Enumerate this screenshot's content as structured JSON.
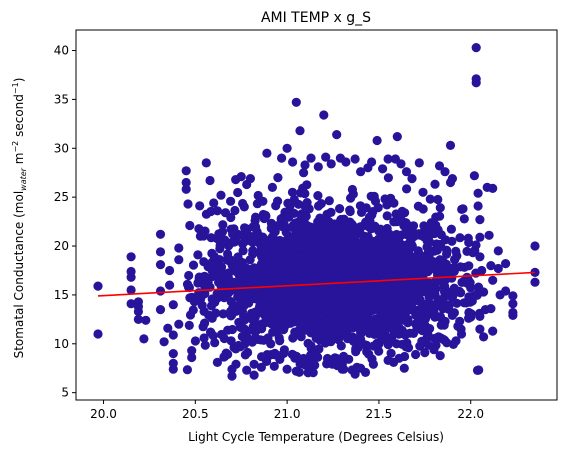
{
  "chart_data": {
    "type": "scatter",
    "title": "AMI TEMP x g_S",
    "xlabel": "Light Cycle Temperature (Degrees Celsius)",
    "ylabel": {
      "main": "Stomatal Conductance (mol",
      "sub": "water",
      "mid": " m",
      "sup1": "−2",
      "tail": " second",
      "sup2": "−1",
      "end": ")"
    },
    "xlim": [
      19.85,
      22.47
    ],
    "ylim": [
      4.25,
      42.1
    ],
    "xticks": [
      "20.0",
      "20.5",
      "21.0",
      "21.5",
      "22.0"
    ],
    "xtick_values": [
      20.0,
      20.5,
      21.0,
      21.5,
      22.0
    ],
    "yticks": [
      "5",
      "10",
      "15",
      "20",
      "25",
      "30",
      "35",
      "40"
    ],
    "ytick_values": [
      5,
      10,
      15,
      20,
      25,
      30,
      35,
      40
    ],
    "grid": false,
    "legend": "none",
    "point_color": "#27149a",
    "line_color": "#ff0000",
    "cloud": {
      "description_values": "dense cluster",
      "x_center": 21.25,
      "x_sd": 0.35,
      "y_center": 16.5,
      "y_sd": 3.6,
      "x_range": [
        20.45,
        22.05
      ],
      "y_range": [
        6.8,
        28.5
      ]
    },
    "points": [
      [
        19.97,
        15.9
      ],
      [
        19.97,
        11.0
      ],
      [
        20.15,
        18.9
      ],
      [
        20.15,
        17.4
      ],
      [
        20.15,
        15.5
      ],
      [
        20.15,
        14.1
      ],
      [
        20.15,
        16.8
      ],
      [
        20.19,
        14.3
      ],
      [
        20.19,
        13.3
      ],
      [
        20.19,
        12.5
      ],
      [
        20.19,
        13.8
      ],
      [
        20.22,
        10.5
      ],
      [
        20.23,
        12.4
      ],
      [
        20.31,
        21.2
      ],
      [
        20.31,
        19.4
      ],
      [
        20.31,
        18.1
      ],
      [
        20.31,
        15.4
      ],
      [
        20.31,
        13.5
      ],
      [
        20.33,
        10.2
      ],
      [
        20.35,
        11.6
      ],
      [
        20.36,
        16.0
      ],
      [
        20.36,
        17.5
      ],
      [
        20.38,
        7.4
      ],
      [
        20.38,
        8.0
      ],
      [
        20.38,
        9.0
      ],
      [
        20.38,
        10.9
      ],
      [
        20.38,
        14.0
      ],
      [
        20.41,
        19.8
      ],
      [
        20.41,
        18.6
      ],
      [
        20.41,
        12.0
      ],
      [
        20.45,
        25.8
      ],
      [
        20.45,
        26.5
      ],
      [
        20.45,
        27.7
      ],
      [
        20.46,
        24.3
      ],
      [
        20.47,
        22.1
      ],
      [
        20.48,
        9.3
      ],
      [
        20.48,
        8.6
      ],
      [
        20.56,
        28.5
      ],
      [
        20.58,
        26.7
      ],
      [
        20.6,
        24.4
      ],
      [
        20.62,
        23.6
      ],
      [
        20.64,
        25.2
      ],
      [
        20.62,
        8.1
      ],
      [
        20.66,
        8.7
      ],
      [
        20.7,
        6.7
      ],
      [
        20.7,
        7.4
      ],
      [
        20.72,
        26.8
      ],
      [
        20.75,
        27.1
      ],
      [
        20.78,
        26.3
      ],
      [
        20.8,
        26.9
      ],
      [
        20.78,
        7.3
      ],
      [
        20.82,
        7.9
      ],
      [
        20.82,
        6.8
      ],
      [
        20.86,
        7.6
      ],
      [
        20.89,
        29.5
      ],
      [
        20.92,
        26.0
      ],
      [
        20.95,
        27.0
      ],
      [
        20.97,
        29.0
      ],
      [
        20.93,
        7.7
      ],
      [
        20.96,
        8.4
      ],
      [
        21.0,
        7.4
      ],
      [
        21.0,
        30.0
      ],
      [
        21.03,
        28.6
      ],
      [
        21.05,
        34.7
      ],
      [
        21.07,
        31.8
      ],
      [
        21.09,
        27.5
      ],
      [
        21.05,
        7.2
      ],
      [
        21.1,
        7.8
      ],
      [
        21.13,
        29.0
      ],
      [
        21.17,
        28.1
      ],
      [
        21.2,
        33.4
      ],
      [
        21.21,
        29.1
      ],
      [
        21.24,
        28.4
      ],
      [
        21.15,
        7.8
      ],
      [
        21.22,
        8.5
      ],
      [
        21.27,
        31.4
      ],
      [
        21.29,
        29.0
      ],
      [
        21.32,
        28.6
      ],
      [
        21.37,
        28.9
      ],
      [
        21.4,
        27.6
      ],
      [
        21.3,
        7.4
      ],
      [
        21.37,
        6.9
      ],
      [
        21.4,
        7.5
      ],
      [
        21.44,
        28.0
      ],
      [
        21.46,
        28.6
      ],
      [
        21.49,
        30.8
      ],
      [
        21.52,
        27.9
      ],
      [
        21.55,
        28.9
      ],
      [
        21.47,
        7.9
      ],
      [
        21.55,
        8.3
      ],
      [
        21.59,
        28.9
      ],
      [
        21.6,
        31.2
      ],
      [
        21.62,
        28.4
      ],
      [
        21.65,
        27.6
      ],
      [
        21.68,
        26.9
      ],
      [
        21.58,
        8.1
      ],
      [
        21.64,
        8.7
      ],
      [
        21.7,
        8.9
      ],
      [
        21.72,
        28.5
      ],
      [
        21.74,
        25.5
      ],
      [
        21.78,
        24.8
      ],
      [
        21.83,
        28.2
      ],
      [
        21.86,
        27.6
      ],
      [
        21.75,
        9.1
      ],
      [
        21.8,
        9.4
      ],
      [
        21.87,
        10.1
      ],
      [
        21.89,
        30.3
      ],
      [
        21.89,
        26.5
      ],
      [
        21.9,
        26.9
      ],
      [
        21.9,
        12.9
      ],
      [
        21.92,
        10.3
      ],
      [
        21.93,
        11.8
      ],
      [
        21.94,
        12.3
      ],
      [
        21.95,
        11.0
      ],
      [
        21.98,
        16.8
      ],
      [
        21.99,
        14.8
      ],
      [
        21.99,
        13.2
      ],
      [
        22.03,
        40.3
      ],
      [
        22.03,
        37.1
      ],
      [
        22.03,
        36.7
      ],
      [
        22.02,
        27.2
      ],
      [
        22.04,
        25.4
      ],
      [
        22.04,
        24.1
      ],
      [
        22.05,
        22.7
      ],
      [
        22.05,
        20.9
      ],
      [
        22.05,
        18.9
      ],
      [
        22.06,
        17.5
      ],
      [
        22.05,
        11.5
      ],
      [
        22.05,
        12.8
      ],
      [
        22.07,
        10.7
      ],
      [
        22.07,
        15.3
      ],
      [
        22.08,
        13.5
      ],
      [
        22.09,
        26.0
      ],
      [
        22.12,
        25.9
      ],
      [
        22.1,
        21.1
      ],
      [
        22.11,
        18.0
      ],
      [
        22.12,
        16.5
      ],
      [
        22.11,
        13.6
      ],
      [
        22.12,
        11.3
      ],
      [
        22.15,
        19.5
      ],
      [
        22.15,
        17.7
      ],
      [
        22.16,
        15.0
      ],
      [
        22.19,
        18.2
      ],
      [
        22.19,
        15.4
      ],
      [
        22.23,
        14.1
      ],
      [
        22.23,
        13.2
      ],
      [
        22.23,
        12.9
      ],
      [
        22.23,
        14.9
      ],
      [
        22.35,
        20.0
      ],
      [
        22.35,
        17.3
      ],
      [
        22.35,
        16.3
      ]
    ],
    "trend_line": {
      "x": [
        19.97,
        22.35
      ],
      "y": [
        14.9,
        17.3
      ]
    }
  }
}
